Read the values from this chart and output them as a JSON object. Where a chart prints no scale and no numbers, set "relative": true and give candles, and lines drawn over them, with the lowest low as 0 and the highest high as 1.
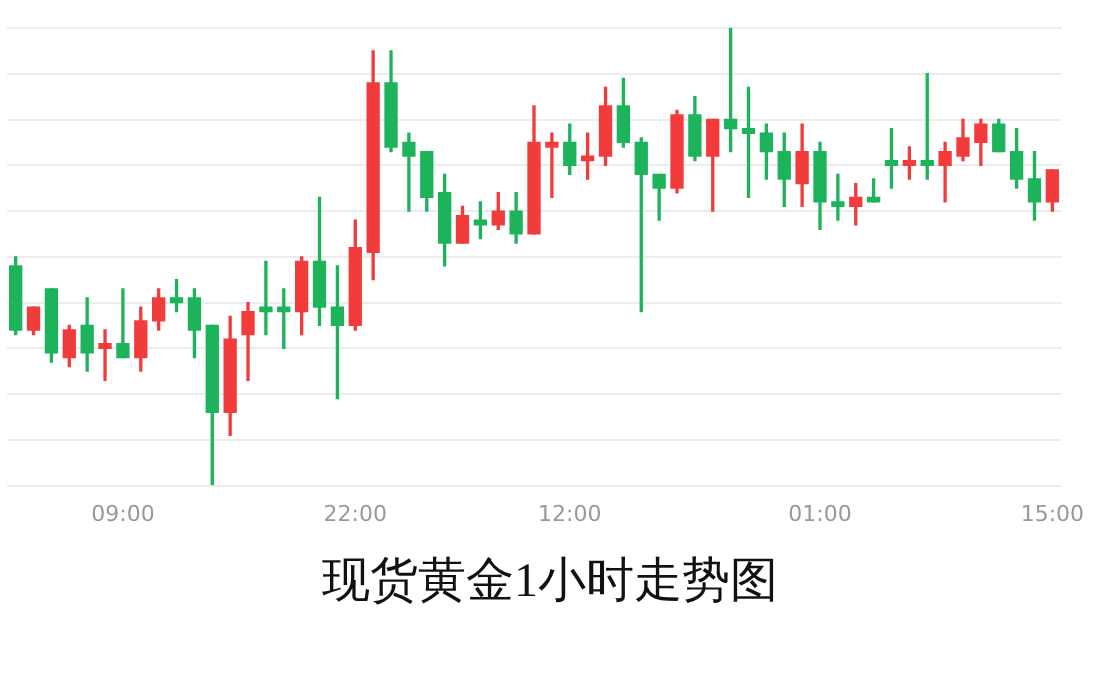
{
  "chart_data": {
    "type": "candlestick",
    "title": "现货黄金1小时走势图",
    "relative": true,
    "grid": "y",
    "categories": [
      null,
      null,
      null,
      null,
      null,
      null,
      "09:00",
      null,
      null,
      null,
      null,
      null,
      null,
      null,
      null,
      null,
      null,
      null,
      null,
      "22:00",
      null,
      null,
      null,
      null,
      null,
      null,
      null,
      null,
      null,
      null,
      null,
      "12:00",
      null,
      null,
      null,
      null,
      null,
      null,
      null,
      null,
      null,
      null,
      null,
      null,
      null,
      "01:00",
      null,
      null,
      null,
      null,
      null,
      null,
      null,
      null,
      null,
      null,
      null,
      null,
      "15:00"
    ],
    "ohlc": [
      [
        0.48,
        0.5,
        0.33,
        0.34
      ],
      [
        0.34,
        0.39,
        0.33,
        0.39
      ],
      [
        0.43,
        0.43,
        0.27,
        0.29
      ],
      [
        0.28,
        0.35,
        0.26,
        0.34
      ],
      [
        0.35,
        0.41,
        0.25,
        0.29
      ],
      [
        0.3,
        0.34,
        0.23,
        0.31
      ],
      [
        0.31,
        0.43,
        0.28,
        0.28
      ],
      [
        0.28,
        0.39,
        0.25,
        0.36
      ],
      [
        0.36,
        0.43,
        0.34,
        0.41
      ],
      [
        0.41,
        0.45,
        0.38,
        0.4
      ],
      [
        0.41,
        0.43,
        0.28,
        0.34
      ],
      [
        0.35,
        0.35,
        0,
        0.16
      ],
      [
        0.16,
        0.37,
        0.11,
        0.32
      ],
      [
        0.33,
        0.4,
        0.23,
        0.38
      ],
      [
        0.39,
        0.49,
        0.33,
        0.38
      ],
      [
        0.39,
        0.43,
        0.3,
        0.38
      ],
      [
        0.38,
        0.5,
        0.33,
        0.49
      ],
      [
        0.49,
        0.63,
        0.35,
        0.39
      ],
      [
        0.39,
        0.48,
        0.19,
        0.35
      ],
      [
        0.35,
        0.58,
        0.34,
        0.52
      ],
      [
        0.51,
        0.95,
        0.45,
        0.88
      ],
      [
        0.88,
        0.95,
        0.73,
        0.74
      ],
      [
        0.75,
        0.77,
        0.6,
        0.72
      ],
      [
        0.73,
        0.73,
        0.6,
        0.63
      ],
      [
        0.64,
        0.68,
        0.48,
        0.53
      ],
      [
        0.53,
        0.61,
        0.53,
        0.59
      ],
      [
        0.58,
        0.62,
        0.54,
        0.57
      ],
      [
        0.57,
        0.64,
        0.56,
        0.6
      ],
      [
        0.6,
        0.64,
        0.53,
        0.55
      ],
      [
        0.55,
        0.83,
        0.55,
        0.75
      ],
      [
        0.74,
        0.77,
        0.63,
        0.75
      ],
      [
        0.75,
        0.79,
        0.68,
        0.7
      ],
      [
        0.71,
        0.77,
        0.67,
        0.72
      ],
      [
        0.72,
        0.87,
        0.7,
        0.83
      ],
      [
        0.83,
        0.89,
        0.74,
        0.75
      ],
      [
        0.75,
        0.76,
        0.38,
        0.68
      ],
      [
        0.68,
        0.68,
        0.58,
        0.65
      ],
      [
        0.65,
        0.82,
        0.64,
        0.81
      ],
      [
        0.81,
        0.85,
        0.71,
        0.72
      ],
      [
        0.72,
        0.8,
        0.6,
        0.8
      ],
      [
        0.8,
        1,
        0.73,
        0.78
      ],
      [
        0.78,
        0.87,
        0.63,
        0.77
      ],
      [
        0.77,
        0.79,
        0.67,
        0.73
      ],
      [
        0.73,
        0.77,
        0.61,
        0.67
      ],
      [
        0.66,
        0.79,
        0.61,
        0.73
      ],
      [
        0.73,
        0.75,
        0.56,
        0.62
      ],
      [
        0.62,
        0.68,
        0.58,
        0.61
      ],
      [
        0.61,
        0.66,
        0.57,
        0.63
      ],
      [
        0.63,
        0.67,
        0.62,
        0.62
      ],
      [
        0.71,
        0.78,
        0.65,
        0.7
      ],
      [
        0.7,
        0.74,
        0.67,
        0.71
      ],
      [
        0.71,
        0.9,
        0.67,
        0.7
      ],
      [
        0.7,
        0.75,
        0.62,
        0.73
      ],
      [
        0.72,
        0.8,
        0.71,
        0.76
      ],
      [
        0.75,
        0.8,
        0.7,
        0.79
      ],
      [
        0.79,
        0.8,
        0.73,
        0.73
      ],
      [
        0.73,
        0.78,
        0.65,
        0.67
      ],
      [
        0.67,
        0.73,
        0.58,
        0.62
      ],
      [
        0.62,
        0.69,
        0.6,
        0.69
      ]
    ],
    "colors": [
      "#1db35b",
      "#f23c3c",
      "#1db35b",
      "#f23c3c",
      "#1db35b",
      "#f23c3c",
      "#1db35b",
      "#f23c3c",
      "#f23c3c",
      "#1db35b",
      "#1db35b",
      "#1db35b",
      "#f23c3c",
      "#f23c3c",
      "#1db35b",
      "#1db35b",
      "#f23c3c",
      "#1db35b",
      "#1db35b",
      "#f23c3c",
      "#f23c3c",
      "#1db35b",
      "#1db35b",
      "#1db35b",
      "#1db35b",
      "#f23c3c",
      "#1db35b",
      "#f23c3c",
      "#1db35b",
      "#f23c3c",
      "#f23c3c",
      "#1db35b",
      "#f23c3c",
      "#f23c3c",
      "#1db35b",
      "#1db35b",
      "#1db35b",
      "#f23c3c",
      "#1db35b",
      "#f23c3c",
      "#1db35b",
      "#1db35b",
      "#1db35b",
      "#1db35b",
      "#f23c3c",
      "#1db35b",
      "#1db35b",
      "#f23c3c",
      "#1db35b",
      "#1db35b",
      "#f23c3c",
      "#1db35b",
      "#f23c3c",
      "#f23c3c",
      "#f23c3c",
      "#1db35b",
      "#1db35b",
      "#1db35b",
      "#f23c3c"
    ]
  }
}
